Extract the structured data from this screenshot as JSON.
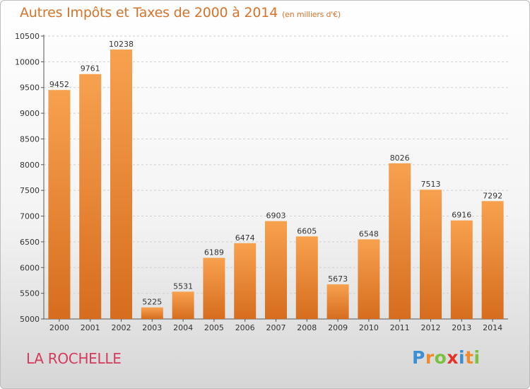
{
  "header": {
    "title": "Autres Impôts et Taxes de 2000 à 2014",
    "subtitle": "(en milliers d'€)"
  },
  "footer": {
    "city": "LA ROCHELLE",
    "logo_letters": [
      "P",
      "r",
      "o",
      "x",
      "i",
      "t",
      "i"
    ]
  },
  "colors": {
    "bar_top": "#f7a14f",
    "bar_bottom": "#d66d1e",
    "title": "#d5732a",
    "city": "#d53a5c"
  },
  "chart_data": {
    "type": "bar",
    "title": "Autres Impôts et Taxes de 2000 à 2014",
    "subtitle": "(en milliers d'€)",
    "categories": [
      "2000",
      "2001",
      "2002",
      "2003",
      "2004",
      "2005",
      "2006",
      "2007",
      "2008",
      "2009",
      "2010",
      "2011",
      "2012",
      "2013",
      "2014"
    ],
    "values": [
      9452,
      9761,
      10238,
      5225,
      5531,
      6189,
      6474,
      6903,
      6605,
      5673,
      6548,
      8026,
      7513,
      6916,
      7292
    ],
    "ylim": [
      5000,
      10500
    ],
    "yticks": [
      5000,
      5500,
      6000,
      6500,
      7000,
      7500,
      8000,
      8500,
      9000,
      9500,
      10000,
      10500
    ],
    "grid": true,
    "legend": "none"
  }
}
